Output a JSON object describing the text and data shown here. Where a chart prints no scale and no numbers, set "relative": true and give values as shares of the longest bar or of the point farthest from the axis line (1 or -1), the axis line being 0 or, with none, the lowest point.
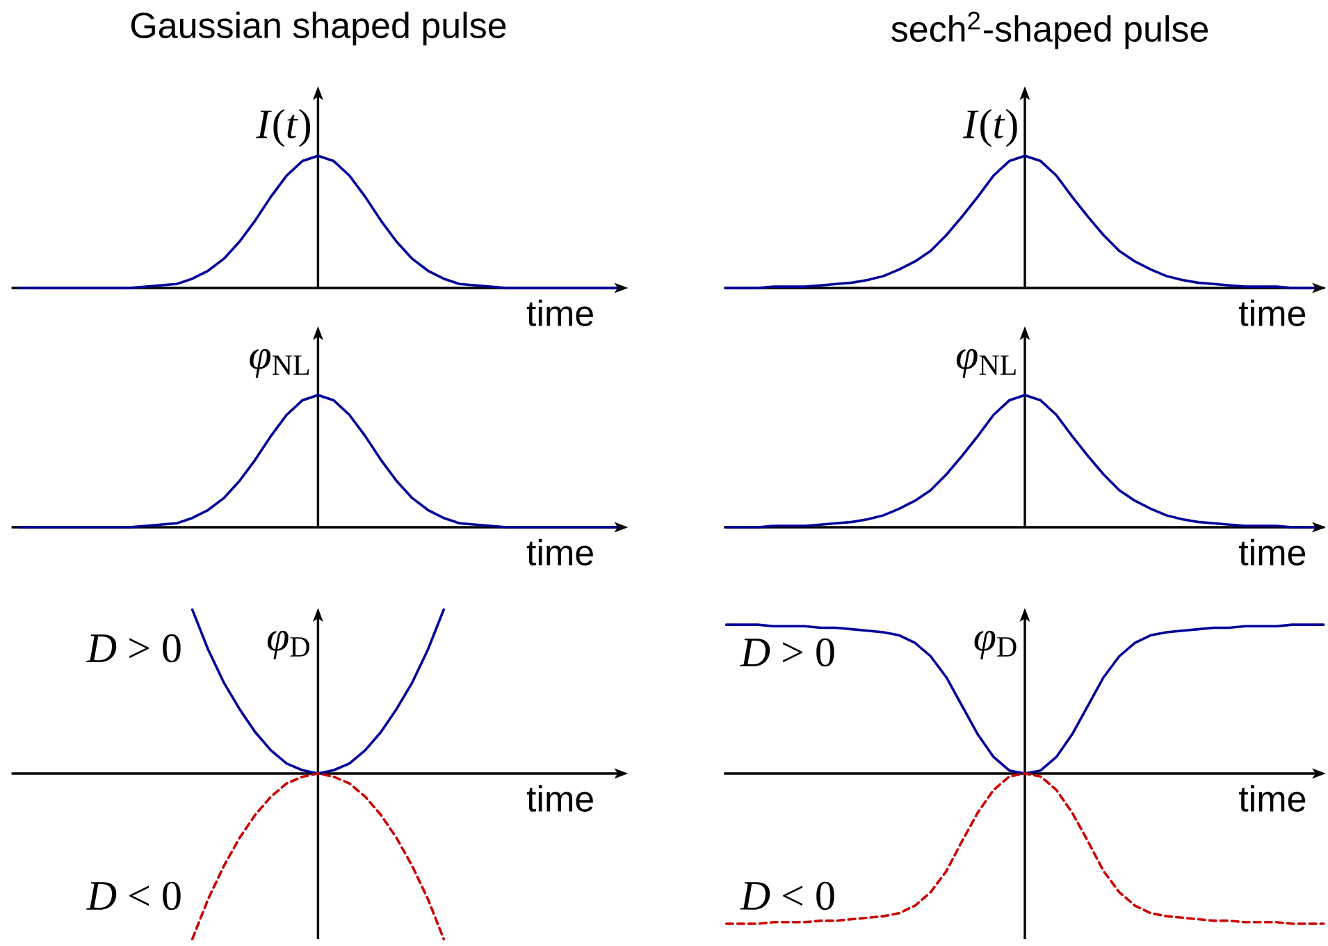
{
  "chart_data": [
    {
      "type": "line",
      "relative": true,
      "title": "Gaussian shaped pulse",
      "xlabel": "time",
      "ylabel": "*I*(*t*)",
      "categories": [
        null,
        null,
        null,
        null,
        null,
        null,
        null,
        null,
        null,
        null,
        null,
        null,
        null,
        null,
        null,
        null,
        null,
        null,
        null,
        null,
        null,
        null,
        null,
        null,
        null,
        null,
        null,
        null,
        null,
        null,
        null,
        null,
        null,
        null,
        null,
        null,
        null,
        null,
        null
      ],
      "color": "#000099",
      "values": [
        0,
        0,
        0,
        0,
        0,
        0,
        0,
        0,
        0.01,
        0.02,
        0.03,
        0.07,
        0.13,
        0.22,
        0.35,
        0.51,
        0.69,
        0.85,
        0.96,
        1,
        0.96,
        0.85,
        0.69,
        0.51,
        0.35,
        0.22,
        0.13,
        0.07,
        0.03,
        0.02,
        0.01,
        0,
        0,
        0,
        0,
        0,
        0,
        0,
        0
      ]
    },
    {
      "type": "line",
      "relative": true,
      "title": "sech$^{2}$-shaped pulse",
      "xlabel": "time",
      "ylabel": "*I*(*t*)",
      "categories": [
        null,
        null,
        null,
        null,
        null,
        null,
        null,
        null,
        null,
        null,
        null,
        null,
        null,
        null,
        null,
        null,
        null,
        null,
        null,
        null,
        null,
        null,
        null,
        null,
        null,
        null,
        null,
        null,
        null,
        null,
        null,
        null,
        null,
        null,
        null,
        null,
        null,
        null,
        null
      ],
      "color": "#000099",
      "values": [
        0,
        0,
        0,
        0.01,
        0.01,
        0.01,
        0.02,
        0.03,
        0.04,
        0.06,
        0.09,
        0.14,
        0.2,
        0.28,
        0.4,
        0.54,
        0.69,
        0.85,
        0.96,
        1,
        0.96,
        0.85,
        0.69,
        0.54,
        0.4,
        0.28,
        0.2,
        0.14,
        0.09,
        0.06,
        0.04,
        0.03,
        0.02,
        0.01,
        0.01,
        0.01,
        0,
        0,
        0
      ]
    },
    {
      "type": "line",
      "relative": true,
      "xlabel": "time",
      "ylabel": "*φ*$_{NL}$",
      "categories": [
        null,
        null,
        null,
        null,
        null,
        null,
        null,
        null,
        null,
        null,
        null,
        null,
        null,
        null,
        null,
        null,
        null,
        null,
        null,
        null,
        null,
        null,
        null,
        null,
        null,
        null,
        null,
        null,
        null,
        null,
        null,
        null,
        null,
        null,
        null,
        null,
        null,
        null,
        null
      ],
      "color": "#000099",
      "values": [
        0,
        0,
        0,
        0,
        0,
        0,
        0,
        0,
        0.01,
        0.02,
        0.03,
        0.07,
        0.13,
        0.22,
        0.35,
        0.51,
        0.69,
        0.85,
        0.96,
        1,
        0.96,
        0.85,
        0.69,
        0.51,
        0.35,
        0.22,
        0.13,
        0.07,
        0.03,
        0.02,
        0.01,
        0,
        0,
        0,
        0,
        0,
        0,
        0,
        0
      ]
    },
    {
      "type": "line",
      "relative": true,
      "xlabel": "time",
      "ylabel": "*φ*$_{NL}$",
      "categories": [
        null,
        null,
        null,
        null,
        null,
        null,
        null,
        null,
        null,
        null,
        null,
        null,
        null,
        null,
        null,
        null,
        null,
        null,
        null,
        null,
        null,
        null,
        null,
        null,
        null,
        null,
        null,
        null,
        null,
        null,
        null,
        null,
        null,
        null,
        null,
        null,
        null,
        null,
        null
      ],
      "color": "#000099",
      "values": [
        0,
        0,
        0,
        0.01,
        0.01,
        0.01,
        0.02,
        0.03,
        0.04,
        0.06,
        0.09,
        0.14,
        0.2,
        0.28,
        0.4,
        0.54,
        0.69,
        0.85,
        0.96,
        1,
        0.96,
        0.85,
        0.69,
        0.54,
        0.4,
        0.28,
        0.2,
        0.14,
        0.09,
        0.06,
        0.04,
        0.03,
        0.02,
        0.01,
        0.01,
        0.01,
        0,
        0,
        0
      ]
    },
    {
      "type": "line",
      "relative": true,
      "xlabel": "time",
      "ylabel": "*φ*$_{D}$",
      "categories": [
        null,
        null,
        null,
        null,
        null,
        null,
        null,
        null,
        null,
        null,
        null,
        null,
        null,
        null,
        null,
        null,
        null,
        null,
        null,
        null,
        null,
        null,
        null,
        null,
        null,
        null,
        null,
        null,
        null,
        null,
        null,
        null,
        null,
        null,
        null,
        null,
        null,
        null,
        null
      ],
      "series": [
        {
          "name": "*D* > 0",
          "color": "#000099",
          "line_style": "solid",
          "values": [
            null,
            null,
            null,
            null,
            null,
            null,
            null,
            null,
            null,
            null,
            null,
            0.99,
            0.75,
            0.55,
            0.39,
            0.25,
            0.14,
            0.06,
            0.02,
            0,
            0.02,
            0.06,
            0.14,
            0.25,
            0.39,
            0.55,
            0.75,
            0.99,
            null,
            null,
            null,
            null,
            null,
            null,
            null,
            null,
            null,
            null,
            null
          ]
        },
        {
          "name": "*D* < 0",
          "color": "#cc0000",
          "line_style": "dashed",
          "values": [
            null,
            null,
            null,
            null,
            null,
            null,
            null,
            null,
            null,
            null,
            null,
            -1,
            -0.76,
            -0.56,
            -0.39,
            -0.25,
            -0.14,
            -0.06,
            -0.02,
            0,
            -0.02,
            -0.06,
            -0.14,
            -0.25,
            -0.39,
            -0.56,
            -0.76,
            -1,
            null,
            null,
            null,
            null,
            null,
            null,
            null,
            null,
            null,
            null,
            null
          ]
        }
      ]
    },
    {
      "type": "line",
      "relative": true,
      "xlabel": "time",
      "ylabel": "*φ*$_{D}$",
      "categories": [
        null,
        null,
        null,
        null,
        null,
        null,
        null,
        null,
        null,
        null,
        null,
        null,
        null,
        null,
        null,
        null,
        null,
        null,
        null,
        null,
        null,
        null,
        null,
        null,
        null,
        null,
        null,
        null,
        null,
        null,
        null,
        null,
        null,
        null,
        null,
        null,
        null,
        null,
        null
      ],
      "series": [
        {
          "name": "*D* > 0",
          "color": "#000099",
          "line_style": "solid",
          "values": [
            0.99,
            0.99,
            0.99,
            0.98,
            0.98,
            0.98,
            0.97,
            0.97,
            0.96,
            0.95,
            0.94,
            0.92,
            0.87,
            0.78,
            0.64,
            0.45,
            0.26,
            0.11,
            0.02,
            0,
            0.02,
            0.11,
            0.26,
            0.45,
            0.64,
            0.78,
            0.87,
            0.92,
            0.94,
            0.95,
            0.96,
            0.97,
            0.97,
            0.98,
            0.98,
            0.98,
            0.99,
            0.99,
            0.99
          ]
        },
        {
          "name": "*D* < 0",
          "color": "#cc0000",
          "line_style": "dashed",
          "values": [
            -1,
            -1,
            -1,
            -0.99,
            -0.99,
            -0.99,
            -0.98,
            -0.98,
            -0.97,
            -0.96,
            -0.95,
            -0.93,
            -0.88,
            -0.79,
            -0.65,
            -0.45,
            -0.26,
            -0.11,
            -0.02,
            0,
            -0.02,
            -0.11,
            -0.26,
            -0.45,
            -0.65,
            -0.79,
            -0.88,
            -0.93,
            -0.95,
            -0.96,
            -0.97,
            -0.98,
            -0.98,
            -0.99,
            -0.99,
            -0.99,
            -1,
            -1,
            -1
          ]
        }
      ]
    }
  ]
}
